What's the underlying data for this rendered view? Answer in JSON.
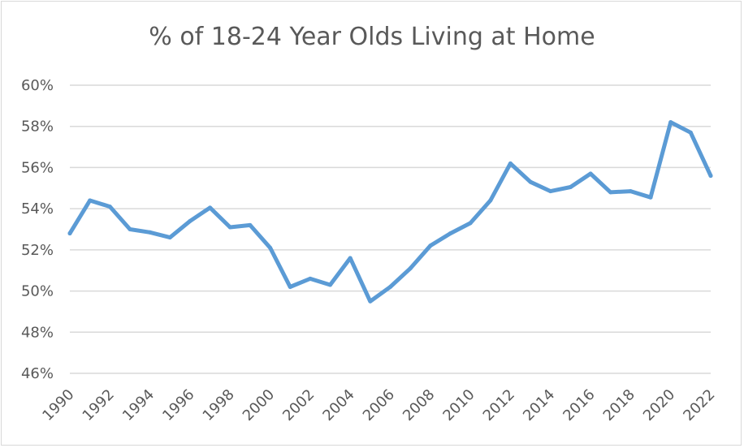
{
  "chart_data": {
    "type": "line",
    "title": "% of 18-24 Year Olds Living at Home",
    "xlabel": "",
    "ylabel": "",
    "x_tick_labels": [
      "1990",
      "1992",
      "1994",
      "1996",
      "1998",
      "2000",
      "2002",
      "2004",
      "2006",
      "2008",
      "2010",
      "2012",
      "2014",
      "2016",
      "2018",
      "2020",
      "2022"
    ],
    "y_tick_labels": [
      "46%",
      "48%",
      "50%",
      "52%",
      "54%",
      "56%",
      "58%",
      "60%"
    ],
    "ylim": [
      46,
      60
    ],
    "xlim": [
      1990,
      2022
    ],
    "grid": "horizontal",
    "legend": "none",
    "line_color": "#5B9BD5",
    "grid_color": "#d9d9d9",
    "series": [
      {
        "x": [
          1990,
          1991,
          1992,
          1993,
          1994,
          1995,
          1996,
          1997,
          1998,
          1999,
          2000,
          2001,
          2002,
          2003,
          2004,
          2005,
          2006,
          2007,
          2008,
          2009,
          2010,
          2011,
          2012,
          2013,
          2014,
          2015,
          2016,
          2017,
          2018,
          2019,
          2020,
          2021,
          2022
        ],
        "values": [
          52.8,
          54.4,
          54.1,
          53.0,
          52.85,
          52.6,
          53.4,
          54.05,
          53.1,
          53.2,
          52.1,
          50.2,
          50.6,
          50.3,
          51.6,
          49.5,
          50.2,
          51.1,
          52.2,
          52.8,
          53.3,
          54.4,
          56.2,
          55.3,
          54.85,
          55.05,
          55.7,
          54.8,
          54.85,
          54.55,
          58.2,
          57.7,
          55.6
        ]
      }
    ]
  }
}
